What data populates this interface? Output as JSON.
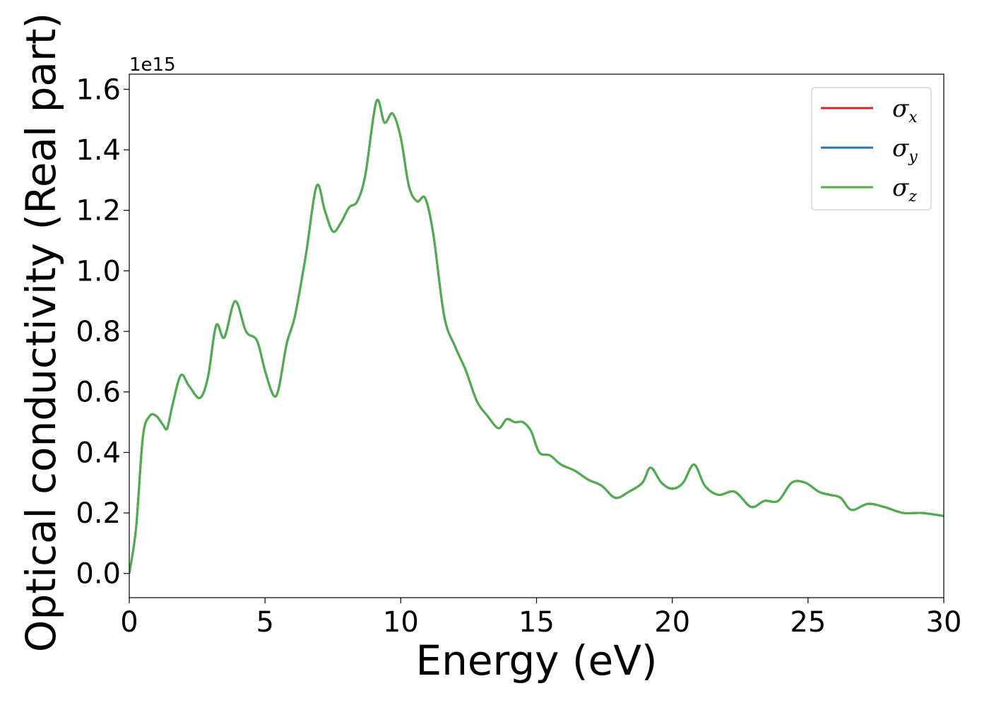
{
  "chart_data": {
    "type": "line",
    "title": "",
    "xlabel": "Energy (eV)",
    "ylabel": "Optical conductivity (Real part)",
    "y_offset_label": "1e15",
    "xlim": [
      0,
      30
    ],
    "ylim": [
      -0.08,
      1.65
    ],
    "x_ticks": [
      0,
      5,
      10,
      15,
      20,
      25,
      30
    ],
    "x_tick_labels": [
      "0",
      "5",
      "10",
      "15",
      "20",
      "25",
      "30"
    ],
    "y_ticks": [
      0.0,
      0.2,
      0.4,
      0.6,
      0.8,
      1.0,
      1.2,
      1.4,
      1.6
    ],
    "y_tick_labels": [
      "0.0",
      "0.2",
      "0.4",
      "0.6",
      "0.8",
      "1.0",
      "1.2",
      "1.4",
      "1.6"
    ],
    "grid": false,
    "legend_position": "top-right",
    "x": [
      0,
      0.25,
      0.5,
      0.75,
      1.0,
      1.25,
      1.4,
      1.6,
      1.9,
      2.2,
      2.6,
      2.9,
      3.2,
      3.5,
      3.9,
      4.3,
      4.7,
      5.0,
      5.3,
      5.5,
      5.8,
      6.1,
      6.5,
      6.9,
      7.2,
      7.5,
      7.8,
      8.1,
      8.4,
      8.7,
      9.1,
      9.4,
      9.7,
      10.0,
      10.3,
      10.6,
      10.9,
      11.2,
      11.6,
      12.0,
      12.4,
      12.8,
      13.2,
      13.6,
      13.9,
      14.2,
      14.5,
      14.8,
      15.1,
      15.5,
      15.9,
      16.4,
      16.9,
      17.4,
      17.9,
      18.4,
      18.9,
      19.2,
      19.6,
      20.0,
      20.4,
      20.8,
      21.2,
      21.7,
      22.3,
      22.9,
      23.4,
      23.9,
      24.4,
      24.9,
      25.4,
      25.8,
      26.2,
      26.6,
      27.2,
      27.8,
      28.5,
      29.2,
      30.0
    ],
    "series": [
      {
        "name": "σx",
        "label_base": "σ",
        "label_sub": "x",
        "color": "#d62728"
      },
      {
        "name": "σy",
        "label_base": "σ",
        "label_sub": "y",
        "color": "#1f77b4"
      },
      {
        "name": "σz",
        "label_base": "σ",
        "label_sub": "z",
        "color": "#4daf4a",
        "values": [
          0.0,
          0.15,
          0.45,
          0.52,
          0.52,
          0.49,
          0.48,
          0.56,
          0.655,
          0.62,
          0.58,
          0.65,
          0.82,
          0.78,
          0.9,
          0.8,
          0.77,
          0.67,
          0.59,
          0.61,
          0.76,
          0.85,
          1.05,
          1.28,
          1.2,
          1.13,
          1.16,
          1.21,
          1.23,
          1.32,
          1.56,
          1.49,
          1.52,
          1.44,
          1.28,
          1.23,
          1.24,
          1.12,
          0.85,
          0.75,
          0.67,
          0.57,
          0.52,
          0.48,
          0.51,
          0.5,
          0.5,
          0.47,
          0.4,
          0.39,
          0.36,
          0.34,
          0.31,
          0.29,
          0.25,
          0.27,
          0.3,
          0.35,
          0.3,
          0.28,
          0.3,
          0.36,
          0.29,
          0.26,
          0.27,
          0.22,
          0.24,
          0.24,
          0.3,
          0.3,
          0.27,
          0.26,
          0.25,
          0.21,
          0.23,
          0.22,
          0.2,
          0.2,
          0.19
        ]
      }
    ]
  }
}
